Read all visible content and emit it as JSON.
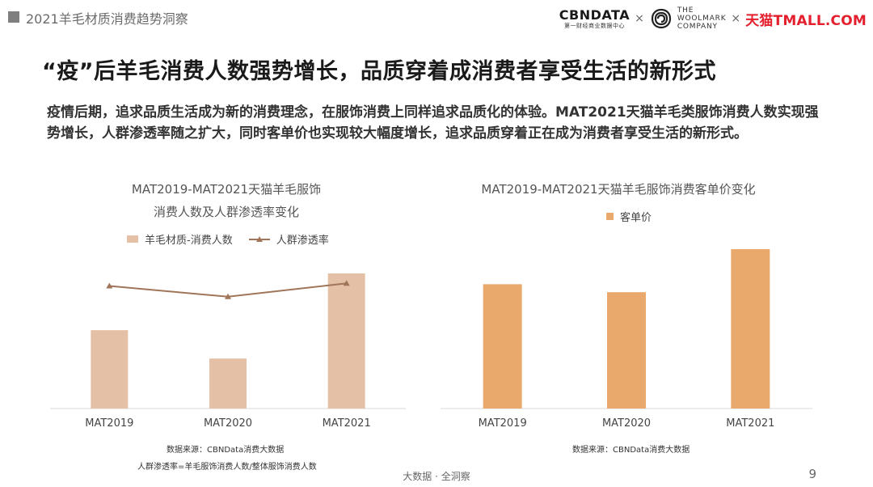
{
  "header": {
    "report_title": "2021羊毛材质消费趋势洞察",
    "logos": {
      "cbn_main": "CBNDATA",
      "cbn_sub": "第一财经商业数据中心",
      "separator": "×",
      "woolmark_lines": [
        "THE",
        "WOOLMARK",
        "COMPANY"
      ],
      "tmall_cn": "天猫",
      "tmall_en": "TMALL.COM"
    }
  },
  "headline": "“疫”后羊毛消费人数强势增长，品质穿着成消费者享受生活的新形式",
  "paragraph": "疫情后期，追求品质生活成为新的消费理念，在服饰消费上同样追求品质化的体验。MAT2021天猫羊毛类服饰消费人数实现强势增长，人群渗透率随之扩大，同时客单价也实现较大幅度增长，追求品质穿着正在成为消费者享受生活的新形式。",
  "colors": {
    "bar_left": "#e4c1a6",
    "line_left": "#a07559",
    "bar_right": "#e9a96c",
    "tmall_red": "#e4202e"
  },
  "chart_data": [
    {
      "type": "bar",
      "title_lines": [
        "MAT2019-MAT2021天猫羊毛服饰",
        "消费人数及人群渗透率变化"
      ],
      "categories": [
        "MAT2019",
        "MAT2020",
        "MAT2021"
      ],
      "series": [
        {
          "name": "羊毛材质-消费人数",
          "kind": "bar",
          "values": [
            58,
            37,
            100
          ]
        },
        {
          "name": "人群渗透率",
          "kind": "line",
          "marker": "triangle",
          "values": [
            93,
            85,
            95
          ]
        }
      ],
      "legend_position": "top",
      "grid": false,
      "source": "数据来源：CBNData消费大数据",
      "note": "人群渗透率=羊毛服饰消费人数/整体服饰消费人数"
    },
    {
      "type": "bar",
      "title": "MAT2019-MAT2021天猫羊毛服饰消费客单价变化",
      "categories": [
        "MAT2019",
        "MAT2020",
        "MAT2021"
      ],
      "series": [
        {
          "name": "客单价",
          "values": [
            78,
            73,
            100
          ]
        }
      ],
      "legend_position": "top",
      "grid": false,
      "source": "数据来源：CBNData消费大数据"
    }
  ],
  "footer": {
    "center": "大数据 · 全洞察",
    "page": "9"
  }
}
